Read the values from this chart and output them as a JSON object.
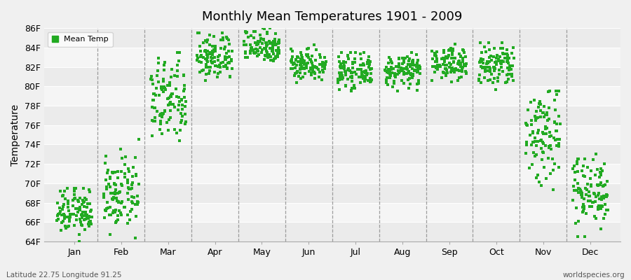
{
  "title": "Monthly Mean Temperatures 1901 - 2009",
  "ylabel": "Temperature",
  "xlabel_labels": [
    "Jan",
    "Feb",
    "Mar",
    "Apr",
    "May",
    "Jun",
    "Jul",
    "Aug",
    "Sep",
    "Oct",
    "Nov",
    "Dec"
  ],
  "legend_label": "Mean Temp",
  "dot_color": "#22aa22",
  "background_color": "#f0f0f0",
  "plot_bg_color_light": "#f0f0f0",
  "plot_bg_color_dark": "#e4e4e4",
  "ylim": [
    64,
    86
  ],
  "ytick_labels": [
    "64F",
    "66F",
    "68F",
    "70F",
    "72F",
    "74F",
    "76F",
    "78F",
    "80F",
    "82F",
    "84F",
    "86F"
  ],
  "ytick_values": [
    64,
    66,
    68,
    70,
    72,
    74,
    76,
    78,
    80,
    82,
    84,
    86
  ],
  "footer_left": "Latitude 22.75 Longitude 91.25",
  "footer_right": "worldspecies.org",
  "num_years": 109,
  "monthly_means": [
    67.1,
    68.8,
    78.5,
    83.0,
    84.2,
    82.3,
    81.5,
    81.6,
    82.4,
    82.1,
    75.2,
    69.3
  ],
  "monthly_stds": [
    1.2,
    1.8,
    2.2,
    1.2,
    0.9,
    0.8,
    0.8,
    0.8,
    0.8,
    1.2,
    2.8,
    1.8
  ],
  "monthly_mins": [
    64.0,
    64.0,
    73.5,
    80.0,
    82.0,
    79.5,
    79.0,
    79.0,
    80.0,
    79.0,
    65.0,
    64.5
  ],
  "monthly_maxs": [
    69.5,
    74.5,
    83.5,
    85.5,
    86.0,
    84.5,
    83.5,
    83.5,
    84.5,
    84.5,
    79.5,
    73.0
  ],
  "dashed_line_color": "#888888",
  "band_colors": [
    "#ebebeb",
    "#f5f5f5"
  ]
}
